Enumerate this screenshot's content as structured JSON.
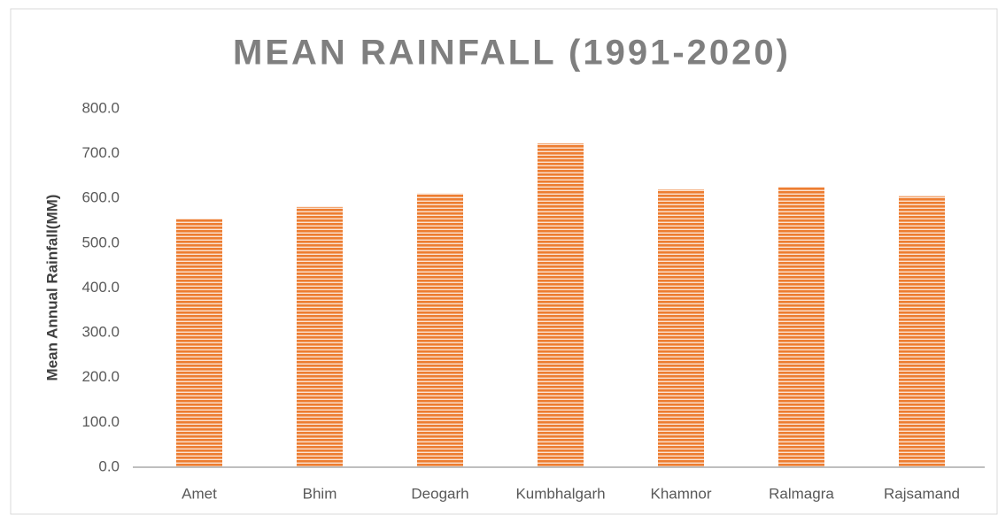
{
  "chart_data": {
    "type": "bar",
    "title": "MEAN RAINFALL (1991-2020)",
    "y_label": "Mean Annual Rainfall(MM)",
    "categories": [
      "Amet",
      "Bhim",
      "Deogarh",
      "Kumbhalgarh",
      "Khamnor",
      "Ralmagra",
      "Rajsamand"
    ],
    "values": [
      555,
      581,
      611,
      723,
      620,
      626,
      605
    ],
    "color": "#ed7d31",
    "ylim": [
      0,
      800
    ],
    "yticks": [
      {
        "value": 0,
        "label": "0.0"
      },
      {
        "value": 100,
        "label": "100.0"
      },
      {
        "value": 200,
        "label": "200.0"
      },
      {
        "value": 300,
        "label": "300.0"
      },
      {
        "value": 400,
        "label": "400.0"
      },
      {
        "value": 500,
        "label": "500.0"
      },
      {
        "value": 600,
        "label": "600.0"
      },
      {
        "value": 700,
        "label": "700.0"
      },
      {
        "value": 800,
        "label": "800.0"
      }
    ],
    "grid": false
  }
}
